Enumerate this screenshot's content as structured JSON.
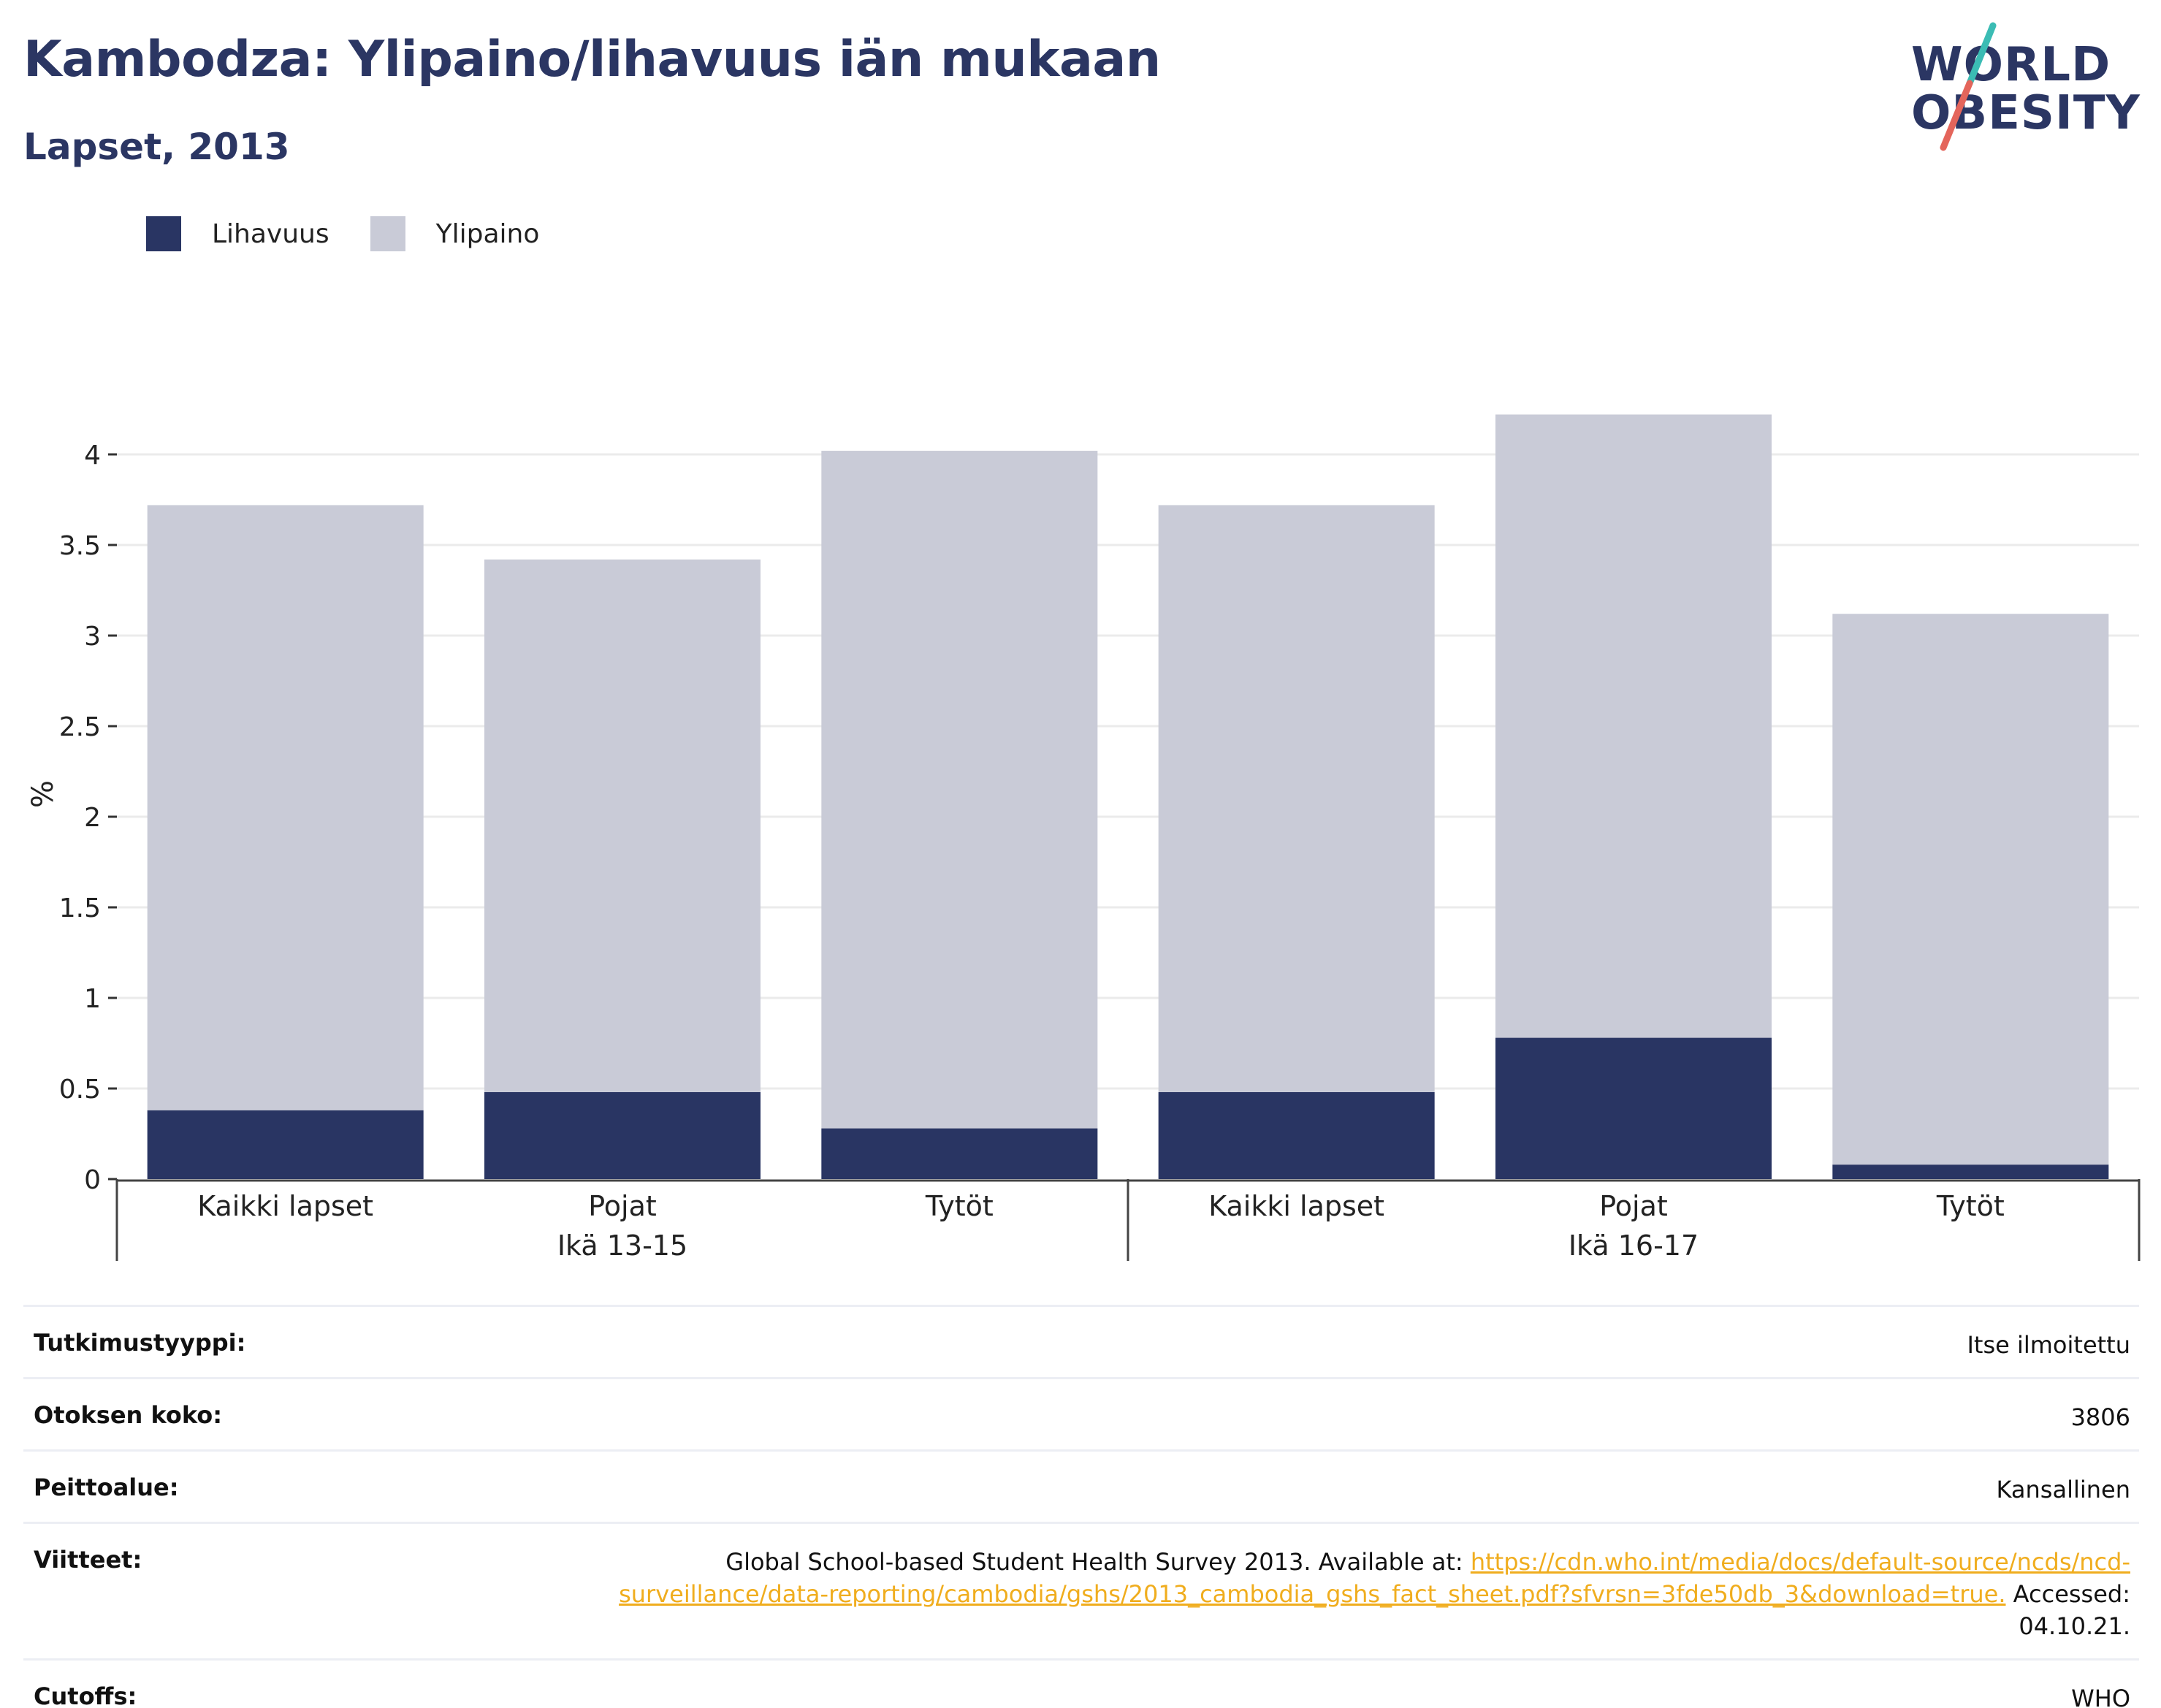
{
  "header": {
    "title": "Kambodza: Ylipaino/lihavuus iän mukaan",
    "subtitle": "Lapset, 2013"
  },
  "logo": {
    "line1": "WORLD",
    "line2": "OBESITY",
    "colors": {
      "text": "#2b3663",
      "slash_top": "#3bbcb4",
      "slash_bottom": "#e4655b"
    }
  },
  "legend": [
    {
      "label": "Lihavuus",
      "color": "#293563"
    },
    {
      "label": "Ylipaino",
      "color": "#c9cbd7"
    }
  ],
  "chart_data": {
    "type": "bar",
    "stacked": true,
    "ylabel": "%",
    "xlabel": "",
    "ylim": [
      0,
      4.25
    ],
    "yticks": [
      0,
      0.5,
      1,
      1.5,
      2,
      2.5,
      3,
      3.5,
      4
    ],
    "ytick_labels": [
      "0",
      "0.5",
      "1",
      "1.5",
      "2",
      "2.5",
      "3",
      "3.5",
      "4"
    ],
    "grid": true,
    "legend_position": "top-left",
    "categories": [
      "Kaikki lapset",
      "Pojat",
      "Tytöt",
      "Kaikki lapset",
      "Pojat",
      "Tytöt"
    ],
    "groups": [
      {
        "label": "Ikä 13-15",
        "categories": [
          0,
          1,
          2
        ]
      },
      {
        "label": "Ikä 16-17",
        "categories": [
          3,
          4,
          5
        ]
      }
    ],
    "series": [
      {
        "name": "Lihavuus",
        "color": "#293563",
        "values": [
          0.38,
          0.48,
          0.28,
          0.48,
          0.78,
          0.08
        ]
      },
      {
        "name": "Ylipaino",
        "color": "#c9cbd7",
        "values": [
          3.34,
          2.94,
          3.74,
          3.24,
          3.44,
          3.04
        ]
      }
    ]
  },
  "details": [
    {
      "key": "Tutkimustyyppi:",
      "value": "Itse ilmoitettu"
    },
    {
      "key": "Otoksen koko:",
      "value": "3806"
    },
    {
      "key": "Peittoalue:",
      "value": "Kansallinen"
    },
    {
      "key": "Viitteet:",
      "value_prefix": "Global School-based Student Health Survey 2013. Available at: ",
      "link": "https://cdn.who.int/media/docs/default-source/ncds/ncd-surveillance/data-reporting/cambodia/gshs/2013_cambodia_gshs_fact_sheet.pdf?sfvrsn=3fde50db_3&download=true.",
      "value_suffix": " Accessed: 04.10.21."
    },
    {
      "key": "Cutoffs:",
      "value": "WHO"
    }
  ]
}
